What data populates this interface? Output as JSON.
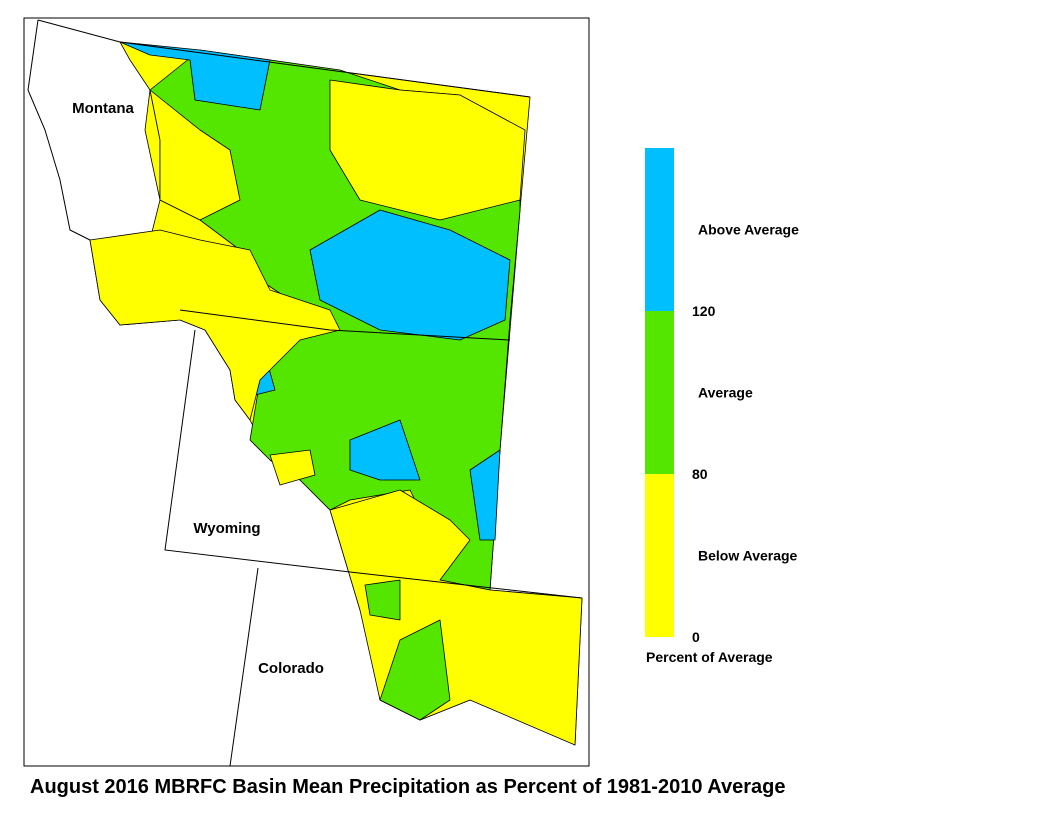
{
  "title": "August 2016 MBRFC Basin Mean Precipitation as Percent of 1981-2010 Average",
  "map": {
    "states": [
      "Montana",
      "Wyoming",
      "Colorado"
    ]
  },
  "legend": {
    "title": "Percent of Average",
    "classes": [
      {
        "label": "Above Average",
        "color": "#00bfff"
      },
      {
        "label": "Average",
        "color": "#55e600"
      },
      {
        "label": "Below Average",
        "color": "#ffff00"
      }
    ],
    "ticks": [
      120,
      80,
      0
    ]
  }
}
